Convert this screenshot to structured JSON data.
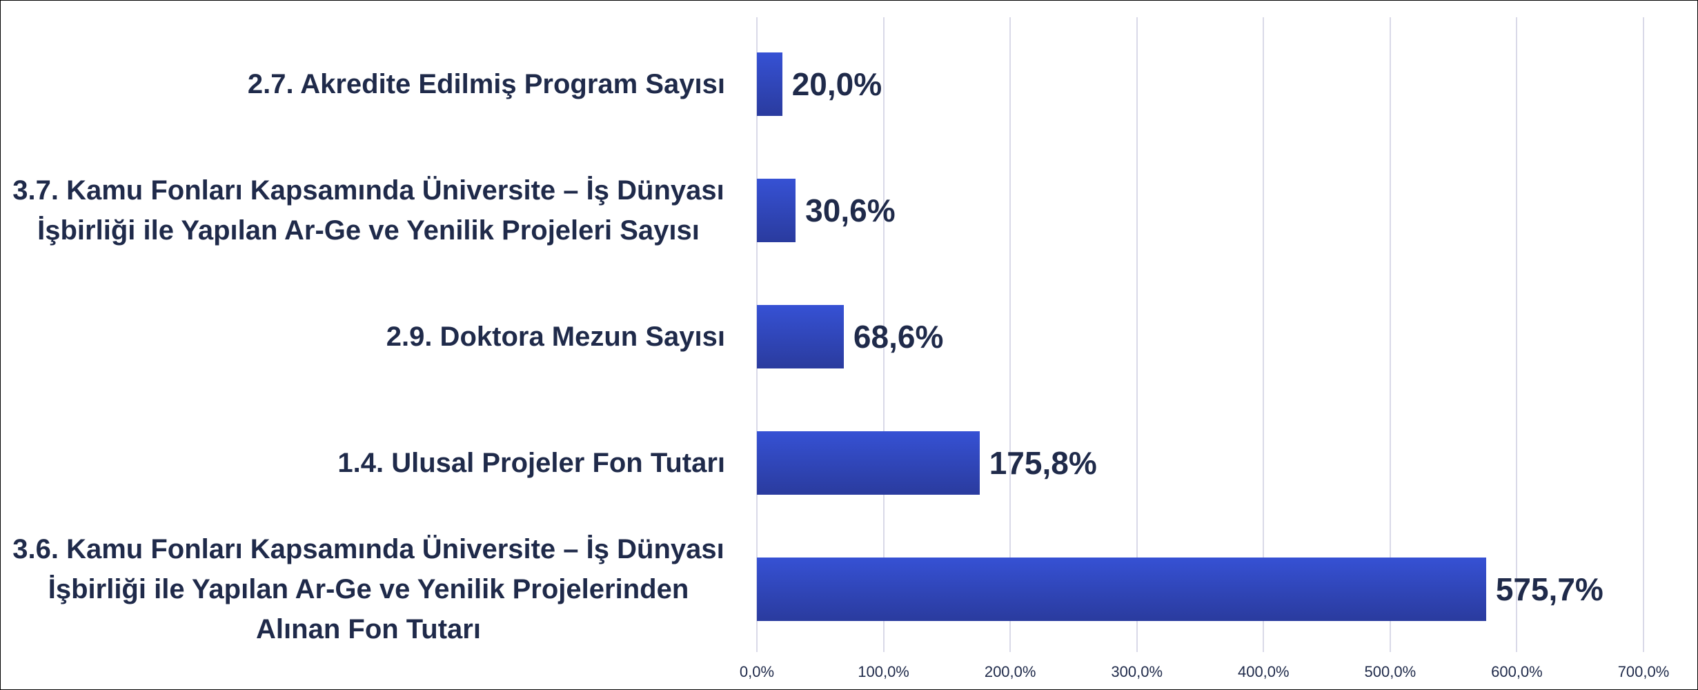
{
  "chart_data": {
    "type": "bar",
    "orientation": "horizontal",
    "categories": [
      "2.7. Akredite Edilmiş Program Sayısı",
      "3.7. Kamu Fonları Kapsamında Üniversite – İş Dünyası İşbirliği ile Yapılan Ar-Ge ve Yenilik Projeleri Sayısı",
      "2.9. Doktora Mezun Sayısı",
      "1.4. Ulusal Projeler Fon Tutarı",
      "3.6. Kamu Fonları Kapsamında Üniversite – İş Dünyası İşbirliği ile Yapılan Ar-Ge ve Yenilik Projelerinden Alınan Fon Tutarı"
    ],
    "values": [
      20.0,
      30.6,
      68.6,
      175.8,
      575.7
    ],
    "value_labels": [
      "20,0%",
      "30,6%",
      "68,6%",
      "175,8%",
      "575,7%"
    ],
    "color": "#3651d4",
    "xlim": [
      0,
      700
    ],
    "xticks": [
      {
        "value": 0,
        "label": "0,0%"
      },
      {
        "value": 100,
        "label": "100,0%"
      },
      {
        "value": 200,
        "label": "200,0%"
      },
      {
        "value": 300,
        "label": "300,0%"
      },
      {
        "value": 400,
        "label": "400,0%"
      },
      {
        "value": 500,
        "label": "500,0%"
      },
      {
        "value": 600,
        "label": "600,0%"
      },
      {
        "value": 700,
        "label": "700,0%"
      }
    ],
    "grid": true
  }
}
